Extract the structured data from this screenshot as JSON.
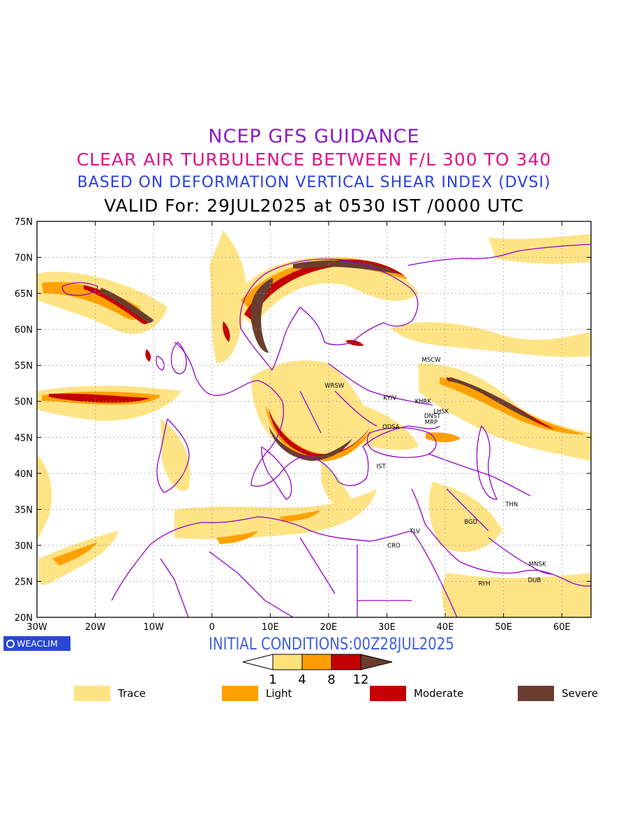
{
  "titles": {
    "line1": "NCEP GFS GUIDANCE",
    "line2": "CLEAR AIR TURBULENCE BETWEEN F/L 300 TO 340",
    "line3": "BASED ON DEFORMATION VERTICAL SHEAR INDEX (DVSI)",
    "line4": "VALID For: 29JUL2025 at 0530 IST /0000 UTC"
  },
  "map": {
    "lon_range": [
      -30,
      65
    ],
    "lat_range": [
      20,
      75
    ],
    "lon_ticks": [
      {
        "value": -30,
        "label": "30W"
      },
      {
        "value": -20,
        "label": "20W"
      },
      {
        "value": -10,
        "label": "10W"
      },
      {
        "value": 0,
        "label": "0"
      },
      {
        "value": 10,
        "label": "10E"
      },
      {
        "value": 20,
        "label": "20E"
      },
      {
        "value": 30,
        "label": "30E"
      },
      {
        "value": 40,
        "label": "40E"
      },
      {
        "value": 50,
        "label": "50E"
      },
      {
        "value": 60,
        "label": "60E"
      }
    ],
    "lat_ticks": [
      {
        "value": 20,
        "label": "20N"
      },
      {
        "value": 25,
        "label": "25N"
      },
      {
        "value": 30,
        "label": "30N"
      },
      {
        "value": 35,
        "label": "35N"
      },
      {
        "value": 40,
        "label": "40N"
      },
      {
        "value": 45,
        "label": "45N"
      },
      {
        "value": 50,
        "label": "50N"
      },
      {
        "value": 55,
        "label": "55N"
      },
      {
        "value": 60,
        "label": "60N"
      },
      {
        "value": 65,
        "label": "65N"
      },
      {
        "value": 70,
        "label": "70N"
      },
      {
        "value": 75,
        "label": "75N"
      }
    ],
    "gridlines": true,
    "stations": [
      {
        "code": "MSCW",
        "lon": 37.6,
        "lat": 55.8
      },
      {
        "code": "WRSW",
        "lon": 21.0,
        "lat": 52.2
      },
      {
        "code": "KYIV",
        "lon": 30.5,
        "lat": 50.5
      },
      {
        "code": "KHRK",
        "lon": 36.2,
        "lat": 50.0
      },
      {
        "code": "LHSK",
        "lon": 39.3,
        "lat": 48.6
      },
      {
        "code": "DNST",
        "lon": 37.8,
        "lat": 48.0
      },
      {
        "code": "MRP",
        "lon": 37.6,
        "lat": 47.1
      },
      {
        "code": "ODSA",
        "lon": 30.7,
        "lat": 46.5
      },
      {
        "code": "IST",
        "lon": 29.0,
        "lat": 41.0
      },
      {
        "code": "TLV",
        "lon": 34.8,
        "lat": 32.0
      },
      {
        "code": "CRO",
        "lon": 31.2,
        "lat": 30.0
      },
      {
        "code": "BGD",
        "lon": 44.4,
        "lat": 33.3
      },
      {
        "code": "THN",
        "lon": 51.4,
        "lat": 35.7
      },
      {
        "code": "MNSK",
        "lon": 55.8,
        "lat": 27.4
      },
      {
        "code": "DUB",
        "lon": 55.3,
        "lat": 25.2
      },
      {
        "code": "RYH",
        "lon": 46.7,
        "lat": 24.7
      }
    ]
  },
  "initial_conditions": "INITIAL CONDITIONS:00Z28JUL2025",
  "brand": "WEACLIM",
  "scale": {
    "thresholds": [
      "1",
      "4",
      "8",
      "12"
    ],
    "colors": [
      "#ffffff",
      "#ffe17a",
      "#ff9e00",
      "#c20000",
      "#6b3d2e"
    ]
  },
  "legend": [
    {
      "label": "Trace",
      "color": "#ffe486"
    },
    {
      "label": "Light",
      "color": "#ffa000"
    },
    {
      "label": "Moderate",
      "color": "#c40000"
    },
    {
      "label": "Severe",
      "color": "#6b3d2e"
    }
  ]
}
